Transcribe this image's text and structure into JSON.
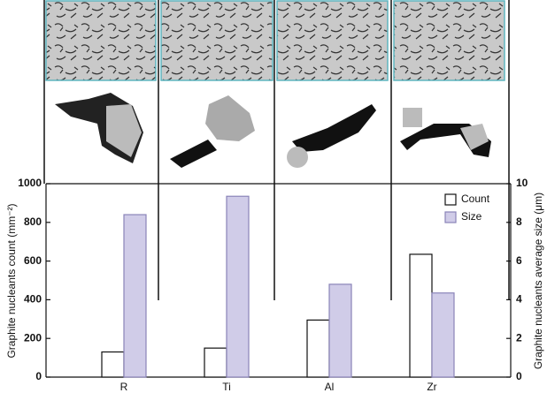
{
  "chart_data": {
    "type": "bar",
    "categories": [
      "R",
      "Ti",
      "Al",
      "Zr"
    ],
    "series": [
      {
        "name": "Count",
        "color": "#ffffff",
        "values": [
          130,
          150,
          295,
          635
        ]
      },
      {
        "name": "Size",
        "color": "#d0cce8",
        "axis": "y2",
        "values": [
          8.4,
          9.35,
          4.8,
          4.35
        ]
      }
    ],
    "ylabel": "Graphite nucleants count (mm⁻²)",
    "y2label": "Graphite nucleants average size (μm)",
    "ylim": [
      0,
      1000
    ],
    "yticks": [
      0,
      200,
      400,
      600,
      800,
      1000
    ],
    "y2lim": [
      0,
      10
    ],
    "y2ticks": [
      0,
      2,
      4,
      6,
      8,
      10
    ],
    "legend": "upper right"
  }
}
